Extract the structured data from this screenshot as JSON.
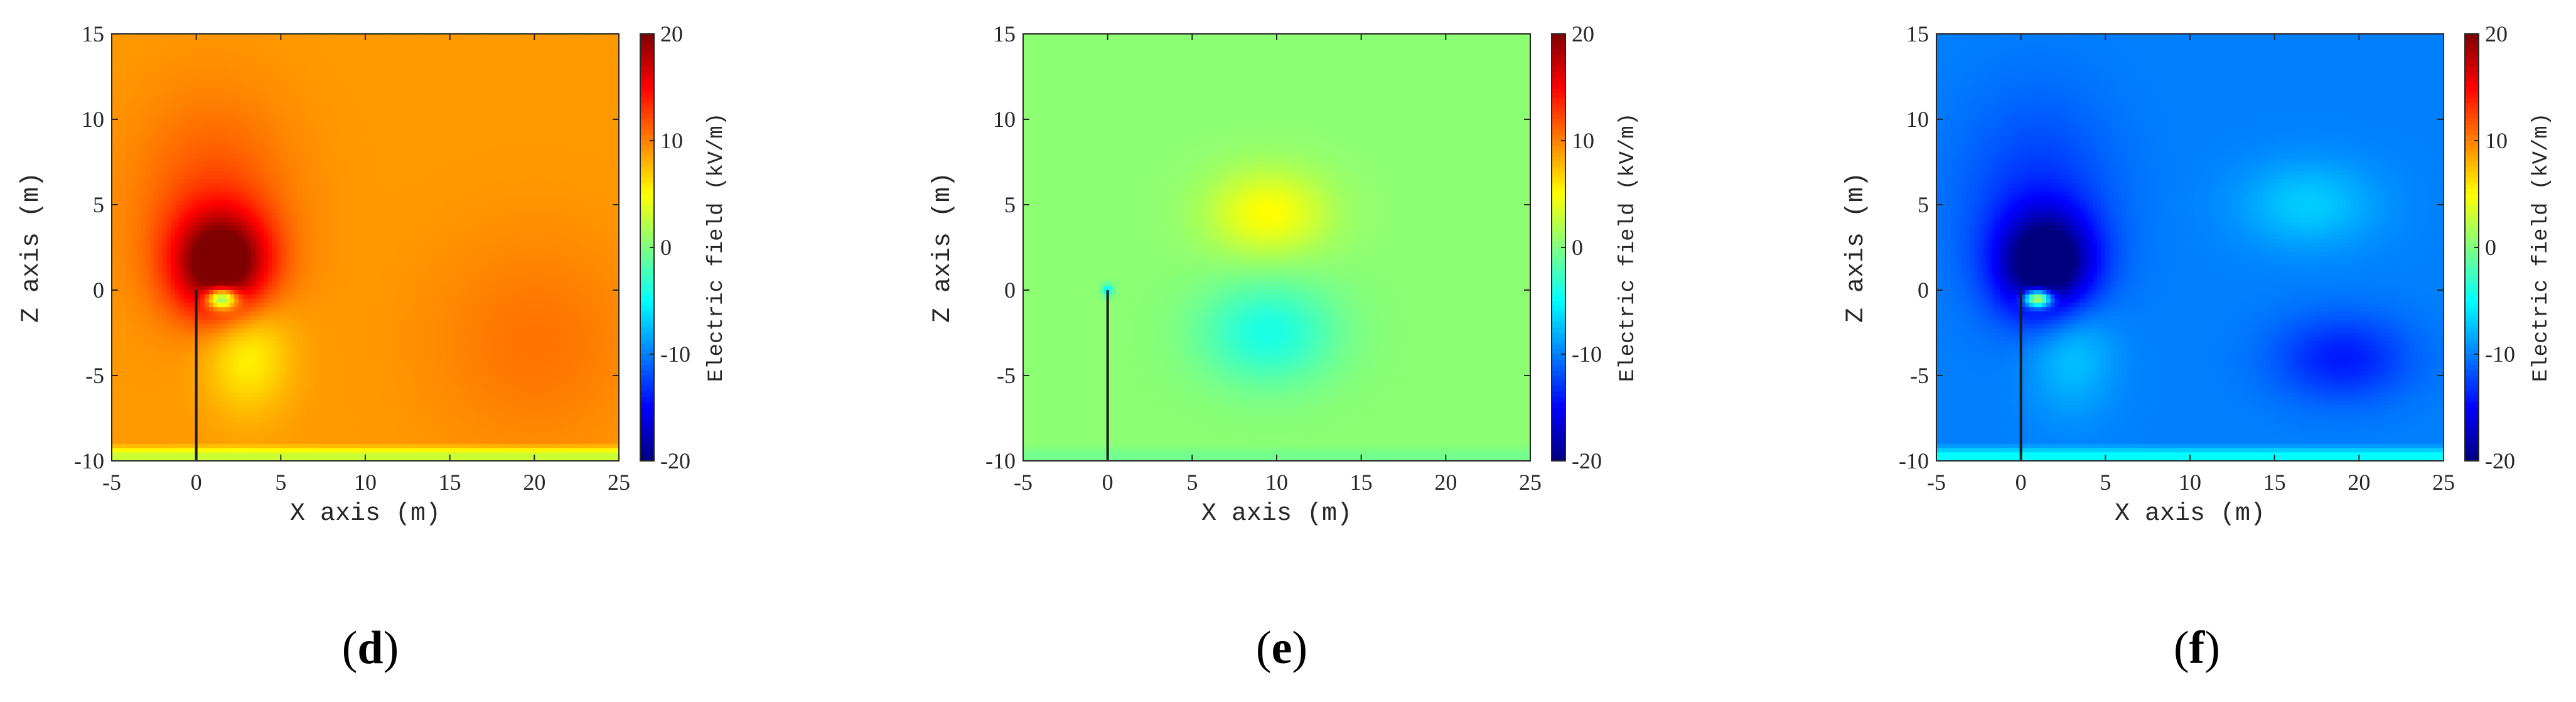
{
  "panel_labels": [
    {
      "open": "(",
      "letter": "d",
      "close": ")"
    },
    {
      "open": "(",
      "letter": "e",
      "close": ")"
    },
    {
      "open": "(",
      "letter": "f",
      "close": ")"
    }
  ],
  "colormap_stops": [
    "#00007f",
    "#0000ff",
    "#0080ff",
    "#00ffff",
    "#80ff80",
    "#ffff00",
    "#ff8000",
    "#ff0000",
    "#7f0000"
  ],
  "chart_data": [
    {
      "type": "heatmap",
      "xlabel": "X axis (m)",
      "ylabel": "Z axis (m)",
      "colorbar_label": "Electric field (kV/m)",
      "xlim": [
        -5,
        25
      ],
      "ylim": [
        -10,
        15
      ],
      "clim": [
        -20,
        20
      ],
      "xticks": [
        -5,
        0,
        5,
        10,
        15,
        20,
        25
      ],
      "yticks": [
        -10,
        -5,
        0,
        5,
        10,
        15
      ],
      "cticks": [
        -20,
        -10,
        0,
        10,
        20
      ],
      "xtick_labels": [
        "-5",
        "0",
        "5",
        "10",
        "15",
        "20",
        "25"
      ],
      "ytick_labels": [
        "-10",
        "-5",
        "0",
        "5",
        "10",
        "15"
      ],
      "ctick_labels": [
        "-20",
        "-10",
        "0",
        "10",
        "20"
      ],
      "conductor": {
        "x": 0,
        "z_bottom": -10,
        "z_top": 0
      },
      "background_value": 9,
      "ground_band": {
        "z_top": -9,
        "value": 3
      },
      "sources": [
        {
          "x": 1.5,
          "z": 1.5,
          "sx": 2.8,
          "sz": 3.0,
          "amplitude": 13
        },
        {
          "x": 1.0,
          "z": 5.0,
          "sx": 4.5,
          "sz": 6.0,
          "amplitude": 3
        },
        {
          "x": 1.5,
          "z": -0.5,
          "sx": 0.9,
          "sz": 0.6,
          "amplitude": -16
        },
        {
          "x": 3.0,
          "z": -3.5,
          "sx": 2.5,
          "sz": 3.5,
          "amplitude": -4
        },
        {
          "x": 20.0,
          "z": -3.0,
          "sx": 6.0,
          "sz": 6.0,
          "amplitude": 1.5
        }
      ]
    },
    {
      "type": "heatmap",
      "xlabel": "X axis (m)",
      "ylabel": "Z axis (m)",
      "colorbar_label": "Electric field (kV/m)",
      "xlim": [
        -5,
        25
      ],
      "ylim": [
        -10,
        15
      ],
      "clim": [
        -20,
        20
      ],
      "xticks": [
        -5,
        0,
        5,
        10,
        15,
        20,
        25
      ],
      "yticks": [
        -10,
        -5,
        0,
        5,
        10,
        15
      ],
      "cticks": [
        -20,
        -10,
        0,
        10,
        20
      ],
      "xtick_labels": [
        "-5",
        "0",
        "5",
        "10",
        "15",
        "20",
        "25"
      ],
      "ytick_labels": [
        "-10",
        "-5",
        "0",
        "5",
        "10",
        "15"
      ],
      "ctick_labels": [
        "-20",
        "-10",
        "0",
        "10",
        "20"
      ],
      "conductor": {
        "x": 0,
        "z_bottom": -10,
        "z_top": 0
      },
      "background_value": 0.5,
      "ground_band": {
        "z_top": -9,
        "value": -0.5
      },
      "sources": [
        {
          "x": 9.5,
          "z": 4.5,
          "sx": 3.5,
          "sz": 2.5,
          "amplitude": 4.5
        },
        {
          "x": 9.5,
          "z": -2.5,
          "sx": 4.0,
          "sz": 3.0,
          "amplitude": -4.5
        },
        {
          "x": 0.0,
          "z": 0.0,
          "sx": 0.35,
          "sz": 0.35,
          "amplitude": -6
        }
      ]
    },
    {
      "type": "heatmap",
      "xlabel": "X axis (m)",
      "ylabel": "Z axis (m)",
      "colorbar_label": "Electric field (kV/m)",
      "xlim": [
        -5,
        25
      ],
      "ylim": [
        -10,
        15
      ],
      "clim": [
        -20,
        20
      ],
      "xticks": [
        -5,
        0,
        5,
        10,
        15,
        20,
        25
      ],
      "yticks": [
        -10,
        -5,
        0,
        5,
        10,
        15
      ],
      "cticks": [
        -20,
        -10,
        0,
        10,
        20
      ],
      "xtick_labels": [
        "-5",
        "0",
        "5",
        "10",
        "15",
        "20",
        "25"
      ],
      "ytick_labels": [
        "-10",
        "-5",
        "0",
        "5",
        "10",
        "15"
      ],
      "ctick_labels": [
        "-20",
        "-10",
        "0",
        "10",
        "20"
      ],
      "conductor": {
        "x": 0,
        "z_bottom": -10,
        "z_top": 0
      },
      "background_value": -10,
      "ground_band": {
        "z_top": -9,
        "value": -5
      },
      "sources": [
        {
          "x": 1.5,
          "z": 1.5,
          "sx": 2.8,
          "sz": 3.0,
          "amplitude": -12
        },
        {
          "x": 1.0,
          "z": 5.0,
          "sx": 4.5,
          "sz": 6.0,
          "amplitude": -3
        },
        {
          "x": 1.0,
          "z": -0.5,
          "sx": 0.8,
          "sz": 0.5,
          "amplitude": 20
        },
        {
          "x": 3.0,
          "z": -3.5,
          "sx": 2.5,
          "sz": 3.5,
          "amplitude": 3
        },
        {
          "x": 17.0,
          "z": 5.0,
          "sx": 4.0,
          "sz": 2.5,
          "amplitude": 3
        },
        {
          "x": 19.0,
          "z": -4.0,
          "sx": 4.0,
          "sz": 2.5,
          "amplitude": -4
        }
      ]
    }
  ]
}
